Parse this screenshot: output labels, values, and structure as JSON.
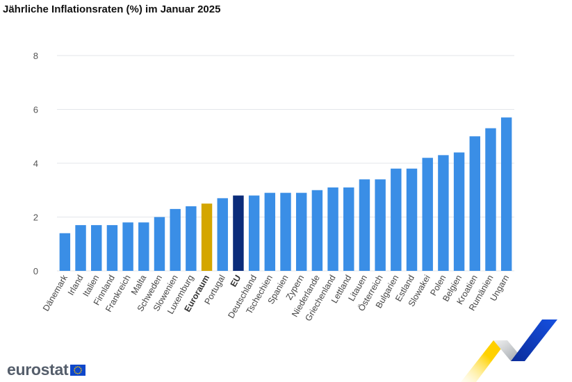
{
  "chart_data": {
    "type": "bar",
    "title": "Jährliche Inflationsraten (%) im Januar 2025",
    "xlabel": "",
    "ylabel": "",
    "ylim": [
      0,
      8
    ],
    "yticks": [
      0,
      2,
      4,
      6,
      8
    ],
    "grid": true,
    "legend": "none",
    "categories": [
      "Dänemark",
      "Irland",
      "Italien",
      "Finnland",
      "Frankreich",
      "Malta",
      "Schweden",
      "Slowenien",
      "Luxemburg",
      "Euroraum",
      "Portugal",
      "EU",
      "Deutschland",
      "Tschechien",
      "Spanien",
      "Zypern",
      "Niederlande",
      "Griechenland",
      "Lettland",
      "Litauen",
      "Österreich",
      "Bulgarien",
      "Estland",
      "Slowakei",
      "Polen",
      "Belgien",
      "Kroatien",
      "Rumänien",
      "Ungarn"
    ],
    "values": [
      1.4,
      1.7,
      1.7,
      1.7,
      1.8,
      1.8,
      2.0,
      2.3,
      2.4,
      2.5,
      2.7,
      2.8,
      2.8,
      2.9,
      2.9,
      2.9,
      3.0,
      3.1,
      3.1,
      3.4,
      3.4,
      3.8,
      3.8,
      4.2,
      4.3,
      4.4,
      5.0,
      5.3,
      5.7
    ],
    "highlight": {
      "Euroraum": "#d4a600",
      "EU": "#0b2c7a"
    },
    "bold_categories": [
      "Euroraum",
      "EU"
    ]
  },
  "colors": {
    "bar": "#3a8ee6",
    "grid": "#e3e6ea",
    "logo_text": "#555e6b",
    "eu_blue": "#0e47cb",
    "eu_star": "#ffcc00"
  },
  "logo": {
    "text": "eurostat",
    "icon": "eu-flag-icon"
  },
  "decoration": {
    "icon": "eurostat-ribbon-icon"
  }
}
